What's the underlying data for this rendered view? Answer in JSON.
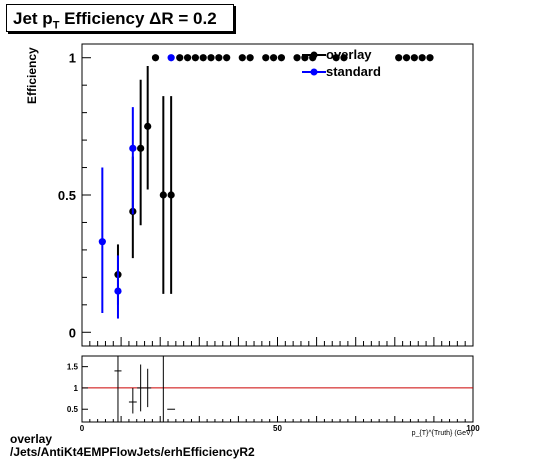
{
  "title": {
    "prefix": "Jet p",
    "sub": "T",
    "suffix": " Efficiency  ΔR = 0.2"
  },
  "footer": {
    "line1": "overlay",
    "line2": "/Jets/AntiKt4EMPFlowJets/erhEfficiencyR2"
  },
  "colors": {
    "overlay": "#000000",
    "standard": "#0000ff",
    "ratio_line": "#cc0000"
  },
  "chart_data": [
    {
      "type": "scatter",
      "ylabel": "Efficiency",
      "xlim": [
        0,
        100
      ],
      "ylim": [
        -0.05,
        1.05
      ],
      "y_ticks": [
        "0",
        "0.5",
        "1"
      ],
      "grid": false,
      "legend_position": "top-right",
      "series": [
        {
          "name": "overlay",
          "points": [
            {
              "x": 9.2,
              "y": 0.21,
              "lo": 0.1,
              "hi": 0.32
            },
            {
              "x": 13.0,
              "y": 0.44,
              "lo": 0.27,
              "hi": 0.64
            },
            {
              "x": 15.0,
              "y": 0.67,
              "lo": 0.39,
              "hi": 0.92
            },
            {
              "x": 16.8,
              "y": 0.75,
              "lo": 0.52,
              "hi": 0.97
            },
            {
              "x": 20.8,
              "y": 0.5,
              "lo": 0.14,
              "hi": 0.86
            },
            {
              "x": 22.8,
              "y": 0.5,
              "lo": 0.14,
              "hi": 0.86
            },
            {
              "x": 18.8,
              "y": 1.0
            },
            {
              "x": 25.0,
              "y": 1.0
            },
            {
              "x": 27.0,
              "y": 1.0
            },
            {
              "x": 29.0,
              "y": 1.0
            },
            {
              "x": 31.0,
              "y": 1.0
            },
            {
              "x": 33.0,
              "y": 1.0
            },
            {
              "x": 35.0,
              "y": 1.0
            },
            {
              "x": 37.0,
              "y": 1.0
            },
            {
              "x": 41.0,
              "y": 1.0
            },
            {
              "x": 43.0,
              "y": 1.0
            },
            {
              "x": 47.0,
              "y": 1.0
            },
            {
              "x": 49.0,
              "y": 1.0
            },
            {
              "x": 51.0,
              "y": 1.0
            },
            {
              "x": 55.0,
              "y": 1.0
            },
            {
              "x": 57.0,
              "y": 1.0
            },
            {
              "x": 59.0,
              "y": 1.0
            },
            {
              "x": 65.0,
              "y": 1.0
            },
            {
              "x": 67.0,
              "y": 1.0
            },
            {
              "x": 81.0,
              "y": 1.0
            },
            {
              "x": 83.0,
              "y": 1.0
            },
            {
              "x": 85.0,
              "y": 1.0
            },
            {
              "x": 87.0,
              "y": 1.0
            },
            {
              "x": 89.0,
              "y": 1.0
            }
          ]
        },
        {
          "name": "standard",
          "points": [
            {
              "x": 5.2,
              "y": 0.33,
              "lo": 0.07,
              "hi": 0.6
            },
            {
              "x": 9.2,
              "y": 0.15,
              "lo": 0.05,
              "hi": 0.28
            },
            {
              "x": 13.0,
              "y": 0.67,
              "lo": 0.43,
              "hi": 0.82
            },
            {
              "x": 22.8,
              "y": 1.0
            }
          ]
        }
      ]
    },
    {
      "type": "scatter",
      "title": "",
      "ylabel": "",
      "xlim": [
        0,
        100
      ],
      "ylim": [
        0.2,
        1.75
      ],
      "x_ticks": [
        "0",
        "50",
        "100"
      ],
      "y_ticks": [
        "0.5",
        "1",
        "1.5"
      ],
      "xlabel": "p_{T}^{Truth} (GeV)",
      "reference_line": 1.0,
      "points": [
        {
          "x": 9.2,
          "y": 1.4,
          "hw": 0.9
        },
        {
          "x": 13.0,
          "y": 0.67,
          "lo": 0.4,
          "hi": 1.0,
          "hw": 1.0
        },
        {
          "x": 15.0,
          "y": 1.0,
          "lo": 0.45,
          "hi": 1.55,
          "hw": 0.9
        },
        {
          "x": 16.8,
          "y": 1.0,
          "lo": 0.55,
          "hi": 1.45,
          "hw": 0.9
        },
        {
          "x": 22.8,
          "y": 0.5,
          "hw": 1.0
        }
      ],
      "vertical_lines": [
        9.2,
        20.8
      ]
    }
  ]
}
